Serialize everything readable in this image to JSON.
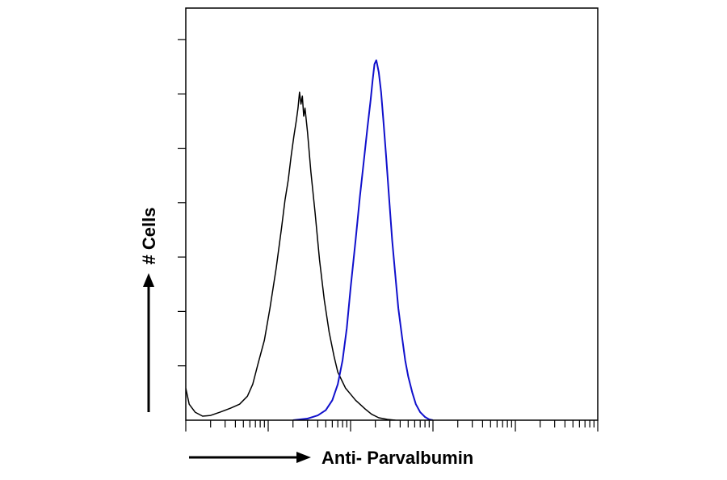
{
  "chart_data": {
    "type": "line",
    "title": "",
    "xlabel": "Anti- Parvalbumin",
    "ylabel": "# Cells",
    "x_scale": "log",
    "xlim": [
      1,
      100000
    ],
    "ylim": [
      0,
      1
    ],
    "grid": false,
    "legend": "none",
    "series": [
      {
        "color": "#000000",
        "points": [
          [
            1,
            0.08
          ],
          [
            1.1,
            0.04
          ],
          [
            1.3,
            0.02
          ],
          [
            1.6,
            0.01
          ],
          [
            2,
            0.012
          ],
          [
            2.6,
            0.02
          ],
          [
            3.5,
            0.03
          ],
          [
            4.5,
            0.04
          ],
          [
            5.6,
            0.06
          ],
          [
            6.5,
            0.09
          ],
          [
            7.5,
            0.14
          ],
          [
            9,
            0.2
          ],
          [
            10.5,
            0.28
          ],
          [
            12.5,
            0.38
          ],
          [
            14.5,
            0.48
          ],
          [
            16,
            0.55
          ],
          [
            17.5,
            0.6
          ],
          [
            19,
            0.66
          ],
          [
            20.5,
            0.71
          ],
          [
            22,
            0.75
          ],
          [
            23,
            0.78
          ],
          [
            24,
            0.82
          ],
          [
            25,
            0.79
          ],
          [
            26,
            0.81
          ],
          [
            27,
            0.76
          ],
          [
            28,
            0.78
          ],
          [
            30,
            0.72
          ],
          [
            33,
            0.62
          ],
          [
            37,
            0.52
          ],
          [
            42,
            0.4
          ],
          [
            48,
            0.3
          ],
          [
            55,
            0.22
          ],
          [
            63,
            0.16
          ],
          [
            70,
            0.12
          ],
          [
            78,
            0.1
          ],
          [
            87,
            0.08
          ],
          [
            100,
            0.065
          ],
          [
            115,
            0.05
          ],
          [
            130,
            0.04
          ],
          [
            150,
            0.028
          ],
          [
            180,
            0.015
          ],
          [
            220,
            0.006
          ],
          [
            280,
            0.002
          ],
          [
            350,
            0
          ]
        ]
      },
      {
        "color": "#1010cc",
        "points": [
          [
            20,
            0
          ],
          [
            30,
            0.004
          ],
          [
            40,
            0.012
          ],
          [
            50,
            0.025
          ],
          [
            60,
            0.05
          ],
          [
            70,
            0.09
          ],
          [
            80,
            0.15
          ],
          [
            90,
            0.23
          ],
          [
            100,
            0.33
          ],
          [
            115,
            0.45
          ],
          [
            130,
            0.56
          ],
          [
            145,
            0.65
          ],
          [
            160,
            0.73
          ],
          [
            175,
            0.8
          ],
          [
            185,
            0.85
          ],
          [
            195,
            0.89
          ],
          [
            205,
            0.9
          ],
          [
            210,
            0.89
          ],
          [
            220,
            0.87
          ],
          [
            235,
            0.82
          ],
          [
            250,
            0.75
          ],
          [
            270,
            0.66
          ],
          [
            295,
            0.55
          ],
          [
            320,
            0.45
          ],
          [
            350,
            0.36
          ],
          [
            380,
            0.28
          ],
          [
            420,
            0.21
          ],
          [
            460,
            0.15
          ],
          [
            500,
            0.11
          ],
          [
            560,
            0.07
          ],
          [
            620,
            0.04
          ],
          [
            700,
            0.02
          ],
          [
            800,
            0.008
          ],
          [
            900,
            0.002
          ],
          [
            1000,
            0
          ]
        ]
      }
    ]
  }
}
